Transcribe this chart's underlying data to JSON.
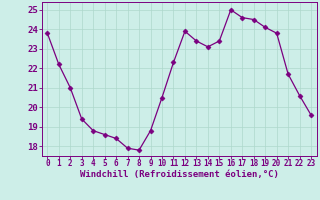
{
  "x": [
    0,
    1,
    2,
    3,
    4,
    5,
    6,
    7,
    8,
    9,
    10,
    11,
    12,
    13,
    14,
    15,
    16,
    17,
    18,
    19,
    20,
    21,
    22,
    23
  ],
  "y": [
    23.8,
    22.2,
    21.0,
    19.4,
    18.8,
    18.6,
    18.4,
    17.9,
    17.8,
    18.8,
    20.5,
    22.3,
    23.9,
    23.4,
    23.1,
    23.4,
    25.0,
    24.6,
    24.5,
    24.1,
    23.8,
    21.7,
    20.6,
    19.6
  ],
  "line_color": "#7b0080",
  "marker": "D",
  "marker_size": 2.5,
  "bg_color": "#cdeee8",
  "grid_color": "#aed8cc",
  "xlabel": "Windchill (Refroidissement éolien,°C)",
  "xlabel_color": "#7b0080",
  "tick_color": "#7b0080",
  "spine_color": "#7b0080",
  "ylim": [
    17.5,
    25.4
  ],
  "xlim": [
    -0.5,
    23.5
  ],
  "yticks": [
    18,
    19,
    20,
    21,
    22,
    23,
    24,
    25
  ],
  "xticks": [
    0,
    1,
    2,
    3,
    4,
    5,
    6,
    7,
    8,
    9,
    10,
    11,
    12,
    13,
    14,
    15,
    16,
    17,
    18,
    19,
    20,
    21,
    22,
    23
  ]
}
